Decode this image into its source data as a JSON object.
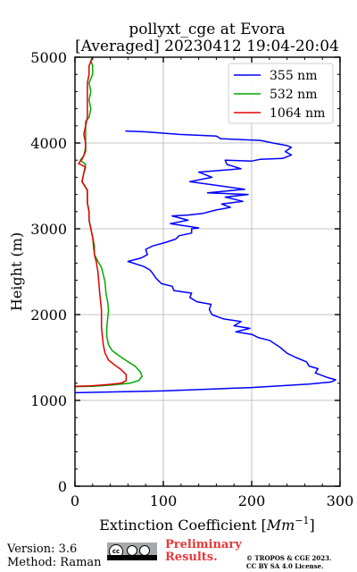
{
  "chart_data": {
    "type": "line",
    "title": "pollyxt_cge at Evora",
    "subtitle": "[Averaged] 20230412 19:04-20:04",
    "xlabel": "Extinction Coefficient [Mm⁻¹]",
    "xlabel_text": "Extinction Coefficient [",
    "xlabel_unit": "Mm",
    "xlabel_exp": "−1",
    "xlabel_close": "]",
    "ylabel": "Height (m)",
    "xlim": [
      0,
      300
    ],
    "ylim": [
      0,
      5000
    ],
    "xticks": [
      0,
      100,
      200,
      300
    ],
    "yticks": [
      0,
      1000,
      2000,
      3000,
      4000,
      5000
    ],
    "grid": true,
    "legend_position": "top-right",
    "series": [
      {
        "name": "355 nm",
        "color": "#0000ff",
        "points": [
          [
            0,
            1090
          ],
          [
            100,
            1110
          ],
          [
            200,
            1150
          ],
          [
            265,
            1190
          ],
          [
            290,
            1215
          ],
          [
            295,
            1240
          ],
          [
            285,
            1270
          ],
          [
            272,
            1320
          ],
          [
            275,
            1370
          ],
          [
            265,
            1400
          ],
          [
            262,
            1450
          ],
          [
            250,
            1500
          ],
          [
            240,
            1550
          ],
          [
            232,
            1620
          ],
          [
            220,
            1700
          ],
          [
            208,
            1730
          ],
          [
            200,
            1770
          ],
          [
            182,
            1800
          ],
          [
            198,
            1840
          ],
          [
            180,
            1870
          ],
          [
            188,
            1920
          ],
          [
            168,
            1950
          ],
          [
            155,
            2000
          ],
          [
            152,
            2060
          ],
          [
            154,
            2120
          ],
          [
            138,
            2150
          ],
          [
            130,
            2200
          ],
          [
            132,
            2250
          ],
          [
            112,
            2280
          ],
          [
            110,
            2330
          ],
          [
            98,
            2360
          ],
          [
            92,
            2420
          ],
          [
            88,
            2480
          ],
          [
            85,
            2520
          ],
          [
            78,
            2560
          ],
          [
            60,
            2620
          ],
          [
            75,
            2660
          ],
          [
            82,
            2700
          ],
          [
            80,
            2760
          ],
          [
            88,
            2800
          ],
          [
            102,
            2840
          ],
          [
            114,
            2880
          ],
          [
            118,
            2920
          ],
          [
            132,
            2950
          ],
          [
            132,
            3000
          ],
          [
            140,
            3010
          ],
          [
            108,
            3060
          ],
          [
            128,
            3100
          ],
          [
            110,
            3150
          ],
          [
            128,
            3160
          ],
          [
            145,
            3180
          ],
          [
            160,
            3220
          ],
          [
            176,
            3250
          ],
          [
            166,
            3290
          ],
          [
            190,
            3320
          ],
          [
            170,
            3370
          ],
          [
            196,
            3400
          ],
          [
            150,
            3420
          ],
          [
            192,
            3460
          ],
          [
            130,
            3550
          ],
          [
            155,
            3600
          ],
          [
            140,
            3660
          ],
          [
            188,
            3700
          ],
          [
            172,
            3750
          ],
          [
            170,
            3800
          ],
          [
            200,
            3790
          ],
          [
            210,
            3810
          ],
          [
            235,
            3820
          ],
          [
            245,
            3860
          ],
          [
            238,
            3900
          ],
          [
            245,
            3950
          ],
          [
            240,
            3970
          ],
          [
            224,
            4000
          ],
          [
            210,
            4030
          ],
          [
            165,
            4050
          ],
          [
            160,
            4080
          ],
          [
            118,
            4100
          ],
          [
            80,
            4130
          ],
          [
            57,
            4140
          ]
        ]
      },
      {
        "name": "532 nm",
        "color": "#00aa00",
        "points": [
          [
            0,
            1160
          ],
          [
            20,
            1165
          ],
          [
            42,
            1180
          ],
          [
            62,
            1200
          ],
          [
            72,
            1230
          ],
          [
            76,
            1280
          ],
          [
            74,
            1330
          ],
          [
            68,
            1400
          ],
          [
            60,
            1450
          ],
          [
            50,
            1520
          ],
          [
            42,
            1580
          ],
          [
            38,
            1650
          ],
          [
            36,
            1750
          ],
          [
            36,
            1850
          ],
          [
            37,
            1950
          ],
          [
            38,
            2050
          ],
          [
            37,
            2150
          ],
          [
            35,
            2250
          ],
          [
            34,
            2380
          ],
          [
            30,
            2550
          ],
          [
            26,
            2620
          ],
          [
            22,
            2700
          ],
          [
            22,
            2800
          ],
          [
            20,
            2900
          ],
          [
            18,
            3000
          ],
          [
            16,
            3100
          ],
          [
            16,
            3200
          ],
          [
            14,
            3300
          ],
          [
            14,
            3450
          ],
          [
            8,
            3550
          ],
          [
            10,
            3650
          ],
          [
            12,
            3750
          ],
          [
            6,
            3800
          ],
          [
            10,
            3850
          ],
          [
            12,
            3950
          ],
          [
            12,
            4050
          ],
          [
            12,
            4150
          ],
          [
            12,
            4250
          ],
          [
            16,
            4300
          ],
          [
            18,
            4400
          ],
          [
            16,
            4500
          ],
          [
            18,
            4600
          ],
          [
            16,
            4700
          ],
          [
            20,
            4800
          ],
          [
            20,
            4900
          ],
          [
            18,
            4960
          ],
          [
            20,
            5000
          ]
        ]
      },
      {
        "name": "1064 nm",
        "color": "#dd0000",
        "points": [
          [
            0,
            1165
          ],
          [
            18,
            1170
          ],
          [
            38,
            1185
          ],
          [
            52,
            1200
          ],
          [
            58,
            1230
          ],
          [
            58,
            1300
          ],
          [
            52,
            1360
          ],
          [
            44,
            1420
          ],
          [
            38,
            1470
          ],
          [
            34,
            1550
          ],
          [
            32,
            1650
          ],
          [
            31,
            1750
          ],
          [
            30,
            1850
          ],
          [
            30,
            1950
          ],
          [
            30,
            2050
          ],
          [
            29,
            2150
          ],
          [
            28,
            2250
          ],
          [
            27,
            2380
          ],
          [
            26,
            2500
          ],
          [
            24,
            2620
          ],
          [
            22,
            2700
          ],
          [
            21,
            2800
          ],
          [
            20,
            2900
          ],
          [
            18,
            3000
          ],
          [
            16,
            3100
          ],
          [
            16,
            3200
          ],
          [
            14,
            3300
          ],
          [
            14,
            3450
          ],
          [
            8,
            3550
          ],
          [
            10,
            3650
          ],
          [
            12,
            3720
          ],
          [
            4,
            3760
          ],
          [
            8,
            3810
          ],
          [
            12,
            3900
          ],
          [
            12,
            4000
          ],
          [
            10,
            4100
          ],
          [
            12,
            4200
          ],
          [
            14,
            4300
          ],
          [
            14,
            4400
          ],
          [
            14,
            4500
          ],
          [
            14,
            4600
          ],
          [
            14,
            4700
          ],
          [
            16,
            4800
          ],
          [
            16,
            4900
          ],
          [
            20,
            5000
          ]
        ]
      }
    ]
  },
  "footer": {
    "version": "Version: 3.6",
    "method": "Method: Raman",
    "preliminary_line1": "Preliminary",
    "preliminary_line2": "Results.",
    "copyright_line1": "© TROPOS & CGE 2023.",
    "copyright_line2": "CC BY SA 4.0 License.",
    "license_badge_text": "BY SA"
  }
}
